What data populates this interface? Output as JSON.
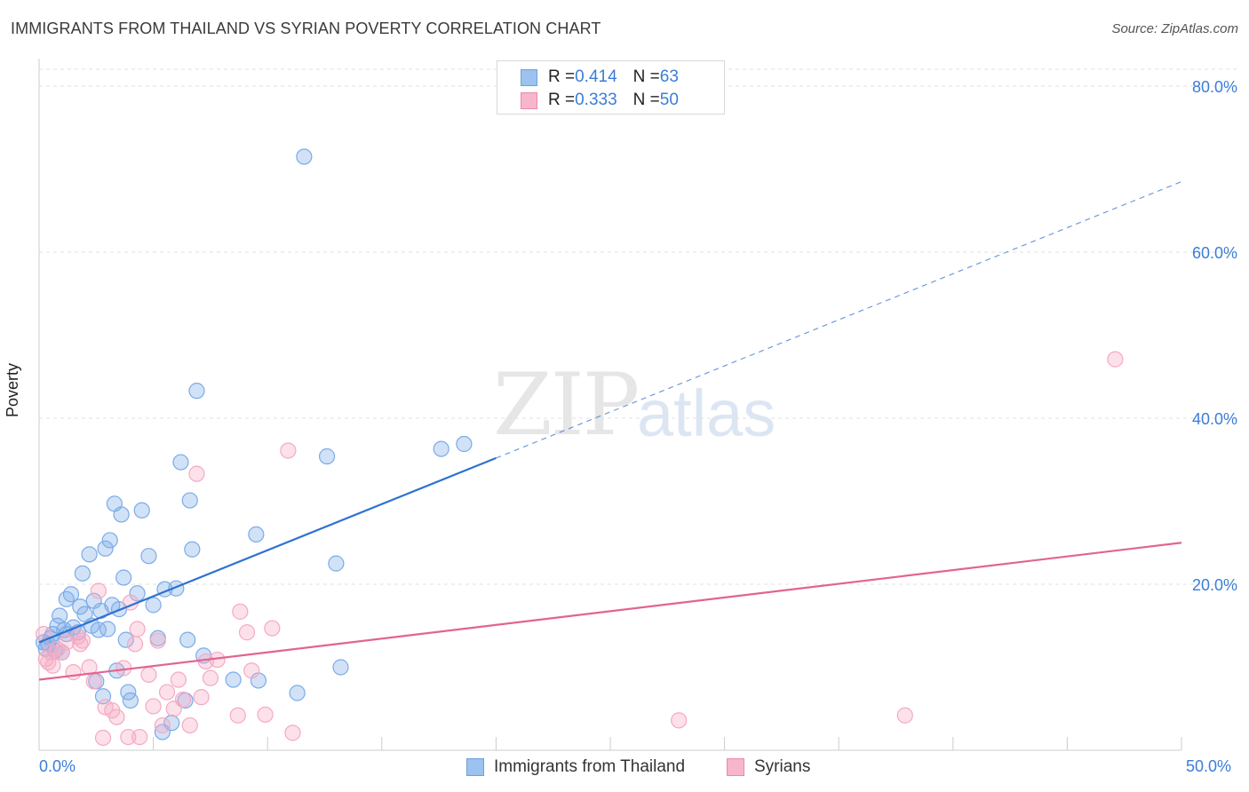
{
  "header": {
    "title": "IMMIGRANTS FROM THAILAND VS SYRIAN POVERTY CORRELATION CHART",
    "source": "Source: ZipAtlas.com"
  },
  "watermark": {
    "zip": "ZIP",
    "atlas": "atlas"
  },
  "legend": {
    "rows": [
      {
        "r_label": "R = ",
        "r_value": "0.414",
        "n_label": "N = ",
        "n_value": "63",
        "color": "#9cc2f0",
        "border": "#6f9fdb"
      },
      {
        "r_label": "R = ",
        "r_value": "0.333",
        "n_label": "N = ",
        "n_value": "50",
        "color": "#f7b6cc",
        "border": "#e98aaa"
      }
    ]
  },
  "chart_data": {
    "type": "scatter",
    "title": "IMMIGRANTS FROM THAILAND VS SYRIAN POVERTY CORRELATION CHART",
    "xlabel": "",
    "ylabel": "Poverty",
    "xlim": [
      0,
      50
    ],
    "ylim": [
      0,
      80
    ],
    "x_tick_labels": {
      "min": "0.0%",
      "max": "50.0%"
    },
    "y_ticks": [
      {
        "value": 20,
        "label": "20.0%"
      },
      {
        "value": 40,
        "label": "40.0%"
      },
      {
        "value": 60,
        "label": "60.0%"
      },
      {
        "value": 80,
        "label": "80.0%"
      }
    ],
    "grid": true,
    "series": [
      {
        "name": "Immigrants from Thailand",
        "color": "#7aabe8",
        "line_color": "#2f72cf",
        "trend": {
          "x0": 0,
          "y0": 13.0,
          "x_solid_end": 20,
          "x1": 50,
          "y1": 68.5
        },
        "points": [
          [
            0.2,
            13.0
          ],
          [
            0.3,
            12.2
          ],
          [
            0.4,
            12.8
          ],
          [
            0.5,
            13.5
          ],
          [
            0.6,
            14.0
          ],
          [
            0.7,
            12.0
          ],
          [
            0.8,
            15.0
          ],
          [
            0.9,
            16.2
          ],
          [
            1.0,
            11.8
          ],
          [
            1.1,
            14.5
          ],
          [
            1.2,
            18.2
          ],
          [
            1.4,
            18.8
          ],
          [
            1.5,
            14.8
          ],
          [
            1.7,
            14.2
          ],
          [
            1.8,
            17.3
          ],
          [
            1.9,
            21.3
          ],
          [
            2.0,
            16.4
          ],
          [
            2.2,
            23.6
          ],
          [
            2.3,
            15.0
          ],
          [
            2.4,
            18.0
          ],
          [
            2.5,
            8.3
          ],
          [
            2.6,
            14.5
          ],
          [
            2.7,
            16.8
          ],
          [
            2.8,
            6.5
          ],
          [
            2.9,
            24.3
          ],
          [
            3.0,
            14.6
          ],
          [
            3.1,
            25.3
          ],
          [
            3.2,
            17.5
          ],
          [
            3.3,
            29.7
          ],
          [
            3.4,
            9.6
          ],
          [
            3.5,
            17.0
          ],
          [
            3.6,
            28.4
          ],
          [
            3.7,
            20.8
          ],
          [
            3.8,
            13.3
          ],
          [
            3.9,
            7.0
          ],
          [
            4.0,
            6.0
          ],
          [
            4.3,
            18.9
          ],
          [
            4.5,
            28.9
          ],
          [
            4.8,
            23.4
          ],
          [
            5.0,
            17.5
          ],
          [
            5.2,
            13.5
          ],
          [
            5.4,
            2.2
          ],
          [
            5.5,
            19.4
          ],
          [
            5.8,
            3.3
          ],
          [
            6.0,
            19.5
          ],
          [
            6.2,
            34.7
          ],
          [
            6.4,
            6.0
          ],
          [
            6.5,
            13.3
          ],
          [
            6.6,
            30.1
          ],
          [
            6.7,
            24.2
          ],
          [
            6.9,
            43.3
          ],
          [
            7.2,
            11.4
          ],
          [
            8.5,
            8.5
          ],
          [
            9.5,
            26.0
          ],
          [
            9.6,
            8.4
          ],
          [
            11.3,
            6.9
          ],
          [
            11.6,
            71.5
          ],
          [
            12.6,
            35.4
          ],
          [
            13.0,
            22.5
          ],
          [
            13.2,
            10.0
          ],
          [
            17.6,
            36.3
          ],
          [
            18.6,
            36.9
          ],
          [
            1.2,
            14.0
          ]
        ]
      },
      {
        "name": "Syrians",
        "color": "#f5a9c2",
        "line_color": "#e2648f",
        "trend": {
          "x0": 0,
          "y0": 8.5,
          "x_solid_end": 50,
          "x1": 50,
          "y1": 25.0
        },
        "points": [
          [
            0.2,
            14.0
          ],
          [
            0.3,
            11.0
          ],
          [
            0.4,
            10.6
          ],
          [
            0.5,
            11.8
          ],
          [
            0.6,
            10.2
          ],
          [
            0.8,
            12.2
          ],
          [
            1.0,
            11.8
          ],
          [
            1.2,
            13.0
          ],
          [
            1.5,
            9.4
          ],
          [
            1.7,
            13.7
          ],
          [
            1.8,
            12.8
          ],
          [
            1.9,
            13.2
          ],
          [
            2.2,
            10.0
          ],
          [
            2.4,
            8.3
          ],
          [
            2.6,
            19.2
          ],
          [
            2.8,
            1.5
          ],
          [
            2.9,
            5.2
          ],
          [
            3.2,
            4.8
          ],
          [
            3.4,
            4.0
          ],
          [
            3.7,
            9.9
          ],
          [
            3.9,
            1.6
          ],
          [
            4.0,
            17.8
          ],
          [
            4.2,
            12.8
          ],
          [
            4.3,
            14.6
          ],
          [
            4.4,
            1.6
          ],
          [
            4.8,
            9.1
          ],
          [
            5.0,
            5.3
          ],
          [
            5.2,
            13.2
          ],
          [
            5.4,
            3.0
          ],
          [
            5.6,
            7.0
          ],
          [
            5.9,
            5.0
          ],
          [
            6.1,
            8.5
          ],
          [
            6.3,
            6.1
          ],
          [
            6.6,
            3.0
          ],
          [
            6.9,
            33.3
          ],
          [
            7.1,
            6.4
          ],
          [
            7.3,
            10.7
          ],
          [
            7.5,
            8.7
          ],
          [
            7.8,
            10.9
          ],
          [
            8.7,
            4.2
          ],
          [
            8.8,
            16.7
          ],
          [
            9.1,
            14.2
          ],
          [
            9.3,
            9.6
          ],
          [
            9.9,
            4.3
          ],
          [
            10.2,
            14.7
          ],
          [
            10.9,
            36.1
          ],
          [
            11.1,
            2.1
          ],
          [
            28.0,
            3.6
          ],
          [
            37.9,
            4.2
          ],
          [
            47.1,
            47.1
          ]
        ]
      }
    ]
  },
  "bottom_legend": [
    {
      "label": "Immigrants from Thailand"
    },
    {
      "label": "Syrians"
    }
  ]
}
